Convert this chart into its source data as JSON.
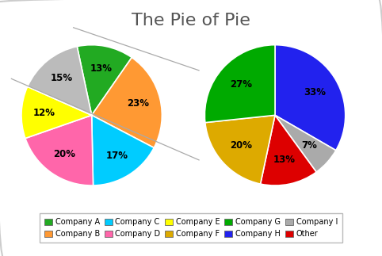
{
  "title": "The Pie of Pie",
  "title_fontsize": 16,
  "main_values": [
    13,
    23,
    17,
    20,
    12,
    15
  ],
  "main_colors": [
    "#22aa22",
    "#ff9933",
    "#00ccff",
    "#ff66aa",
    "#ffff00",
    "#bbbbbb"
  ],
  "bar_values": [
    5,
    1,
    2,
    3,
    4
  ],
  "bar_colors": [
    "#2222ee",
    "#aaaaaa",
    "#dd0000",
    "#ddaa00",
    "#00aa00"
  ],
  "bar_labels": [
    "Company H",
    "Company I",
    "Other",
    "Company F",
    "Company G"
  ],
  "legend_entries": [
    {
      "label": "Company A",
      "color": "#22aa22"
    },
    {
      "label": "Company B",
      "color": "#ff9933"
    },
    {
      "label": "Company C",
      "color": "#00ccff"
    },
    {
      "label": "Company D",
      "color": "#ff66aa"
    },
    {
      "label": "Company E",
      "color": "#ffff00"
    },
    {
      "label": "Company F",
      "color": "#ddaa00"
    },
    {
      "label": "Company G",
      "color": "#00aa00"
    },
    {
      "label": "Company H",
      "color": "#2222ee"
    },
    {
      "label": "Company I",
      "color": "#aaaaaa"
    },
    {
      "label": "Other",
      "color": "#dd0000"
    }
  ],
  "background_color": "#ffffff",
  "connection_color": "#aaaaaa",
  "main_startangle": 102,
  "bar_startangle": 90
}
